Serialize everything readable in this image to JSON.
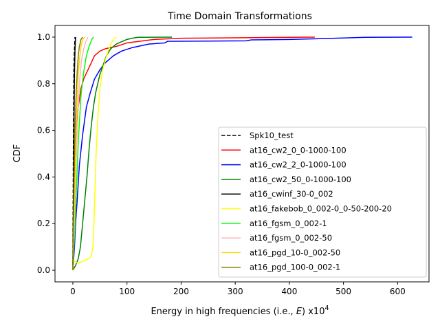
{
  "chart_data": {
    "type": "line",
    "title": "Time Domain Transformations",
    "xlabel": "Energy in high frequencies (i.e., E) x10^4",
    "xlabel_parts": {
      "prefix": "Energy in high frequencies (i.e., ",
      "var": "E",
      "suffix": ") x10",
      "exponent": "4"
    },
    "ylabel": "CDF",
    "xlim": [
      -33,
      658
    ],
    "ylim": [
      -0.05,
      1.05
    ],
    "xticks": [
      0,
      100,
      200,
      300,
      400,
      500,
      600
    ],
    "xtick_labels": [
      "0",
      "100",
      "200",
      "300",
      "400",
      "500",
      "600"
    ],
    "yticks": [
      0.0,
      0.2,
      0.4,
      0.6,
      0.8,
      1.0
    ],
    "ytick_labels": [
      "0.0",
      "0.2",
      "0.4",
      "0.6",
      "0.8",
      "1.0"
    ],
    "legend_position": "lower right",
    "series": [
      {
        "name": "Spk10_test",
        "color": "#000000",
        "dash": "dashed",
        "points": [
          [
            0,
            0
          ],
          [
            0.5,
            0.3
          ],
          [
            1,
            0.55
          ],
          [
            1.5,
            0.75
          ],
          [
            2,
            0.88
          ],
          [
            3,
            0.95
          ],
          [
            3.5,
            0.98
          ],
          [
            4,
            1.0
          ]
        ]
      },
      {
        "name": "at16_cw2_0_0-1000-100",
        "color": "#ff0000",
        "dash": "solid",
        "points": [
          [
            0,
            0
          ],
          [
            2,
            0.3
          ],
          [
            5,
            0.55
          ],
          [
            10,
            0.7
          ],
          [
            15,
            0.78
          ],
          [
            20,
            0.82
          ],
          [
            30,
            0.87
          ],
          [
            40,
            0.92
          ],
          [
            50,
            0.94
          ],
          [
            60,
            0.95
          ],
          [
            80,
            0.96
          ],
          [
            100,
            0.975
          ],
          [
            150,
            0.99
          ],
          [
            200,
            0.995
          ],
          [
            300,
            0.997
          ],
          [
            400,
            0.999
          ],
          [
            447,
            1.0
          ]
        ]
      },
      {
        "name": "at16_cw2_2_0-1000-100",
        "color": "#0000ff",
        "dash": "solid",
        "points": [
          [
            0,
            0
          ],
          [
            3,
            0.1
          ],
          [
            5,
            0.2
          ],
          [
            8,
            0.3
          ],
          [
            12,
            0.45
          ],
          [
            18,
            0.58
          ],
          [
            25,
            0.7
          ],
          [
            32,
            0.76
          ],
          [
            40,
            0.82
          ],
          [
            50,
            0.86
          ],
          [
            60,
            0.89
          ],
          [
            75,
            0.92
          ],
          [
            90,
            0.94
          ],
          [
            110,
            0.955
          ],
          [
            140,
            0.97
          ],
          [
            170,
            0.975
          ],
          [
            175,
            0.982
          ],
          [
            250,
            0.983
          ],
          [
            320,
            0.984
          ],
          [
            330,
            0.988
          ],
          [
            400,
            0.99
          ],
          [
            450,
            0.993
          ],
          [
            500,
            0.996
          ],
          [
            540,
            0.999
          ],
          [
            627,
            1.0
          ]
        ]
      },
      {
        "name": "at16_cw2_50_0-1000-100",
        "color": "#008000",
        "dash": "solid",
        "points": [
          [
            0,
            0
          ],
          [
            5,
            0.02
          ],
          [
            10,
            0.05
          ],
          [
            14,
            0.1
          ],
          [
            18,
            0.2
          ],
          [
            22,
            0.3
          ],
          [
            26,
            0.4
          ],
          [
            30,
            0.52
          ],
          [
            34,
            0.62
          ],
          [
            38,
            0.7
          ],
          [
            42,
            0.76
          ],
          [
            46,
            0.8
          ],
          [
            50,
            0.84
          ],
          [
            56,
            0.88
          ],
          [
            62,
            0.92
          ],
          [
            70,
            0.95
          ],
          [
            80,
            0.97
          ],
          [
            90,
            0.98
          ],
          [
            100,
            0.99
          ],
          [
            110,
            0.995
          ],
          [
            120,
            0.999
          ],
          [
            183,
            1.0
          ]
        ]
      },
      {
        "name": "at16_cwinf_30-0_002",
        "color": "#000000",
        "dash": "solid",
        "points": [
          [
            0,
            0
          ],
          [
            1,
            0.3
          ],
          [
            2,
            0.6
          ],
          [
            3,
            0.85
          ],
          [
            4,
            0.95
          ],
          [
            5,
            1.0
          ]
        ]
      },
      {
        "name": "at16_fakebob_0_002-0_0-50-200-20",
        "color": "#ffff00",
        "dash": "solid",
        "points": [
          [
            0,
            0
          ],
          [
            0.5,
            0.04
          ],
          [
            10,
            0.03
          ],
          [
            20,
            0.04
          ],
          [
            30,
            0.05
          ],
          [
            34,
            0.06
          ],
          [
            37,
            0.1
          ],
          [
            39,
            0.2
          ],
          [
            41,
            0.35
          ],
          [
            43,
            0.5
          ],
          [
            46,
            0.65
          ],
          [
            50,
            0.78
          ],
          [
            55,
            0.86
          ],
          [
            60,
            0.9
          ],
          [
            65,
            0.94
          ],
          [
            70,
            0.97
          ],
          [
            75,
            0.99
          ],
          [
            80,
            1.0
          ]
        ]
      },
      {
        "name": "at16_fgsm_0_002-1",
        "color": "#00ff00",
        "dash": "solid",
        "points": [
          [
            0,
            0
          ],
          [
            5,
            0.25
          ],
          [
            10,
            0.55
          ],
          [
            15,
            0.75
          ],
          [
            20,
            0.85
          ],
          [
            25,
            0.92
          ],
          [
            30,
            0.96
          ],
          [
            35,
            0.99
          ],
          [
            38,
            1.0
          ]
        ]
      },
      {
        "name": "at16_fgsm_0_002-50",
        "color": "#ffb6c1",
        "dash": "solid",
        "points": [
          [
            0,
            0
          ],
          [
            4,
            0.3
          ],
          [
            8,
            0.6
          ],
          [
            12,
            0.8
          ],
          [
            16,
            0.9
          ],
          [
            20,
            0.95
          ],
          [
            24,
            0.98
          ],
          [
            28,
            1.0
          ]
        ]
      },
      {
        "name": "at16_pgd_10-0_002-50",
        "color": "#ffd700",
        "dash": "solid",
        "points": [
          [
            0,
            0
          ],
          [
            3,
            0.3
          ],
          [
            6,
            0.6
          ],
          [
            9,
            0.8
          ],
          [
            12,
            0.9
          ],
          [
            15,
            0.96
          ],
          [
            18,
            0.99
          ],
          [
            22,
            1.0
          ]
        ]
      },
      {
        "name": "at16_pgd_100-0_002-1",
        "color": "#808000",
        "dash": "solid",
        "points": [
          [
            0,
            0
          ],
          [
            2,
            0.35
          ],
          [
            4,
            0.6
          ],
          [
            6,
            0.75
          ],
          [
            8,
            0.85
          ],
          [
            10,
            0.92
          ],
          [
            12,
            0.96
          ],
          [
            15,
            0.99
          ],
          [
            18,
            1.0
          ]
        ]
      }
    ]
  }
}
